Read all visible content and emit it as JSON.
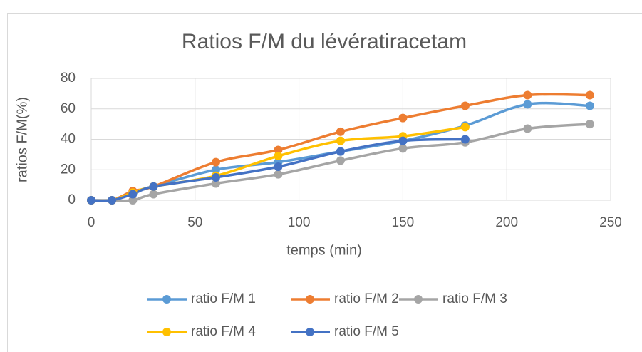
{
  "chart_data": {
    "type": "line",
    "title": "Ratios F/M du lévératiracetam",
    "x_label": "temps (min)",
    "y_label": "ratios F/M(%)",
    "x": [
      0,
      10,
      20,
      30,
      60,
      90,
      120,
      150,
      180,
      210,
      240
    ],
    "xlim": [
      0,
      250
    ],
    "xticks": [
      0,
      50,
      100,
      150,
      200,
      250
    ],
    "ylim": [
      0,
      80
    ],
    "yticks": [
      0,
      20,
      40,
      60,
      80
    ],
    "grid": true,
    "smooth": true,
    "legend": "bottom",
    "series": [
      {
        "name": "ratio F/M 1",
        "color": "#5B9BD5",
        "values": [
          0,
          0,
          5,
          9,
          20,
          25,
          32,
          39,
          49,
          63,
          62
        ]
      },
      {
        "name": "ratio F/M 2",
        "color": "#ED7D31",
        "values": [
          0,
          0,
          6,
          9,
          25,
          33,
          45,
          54,
          62,
          69,
          69
        ]
      },
      {
        "name": "ratio F/M 3",
        "color": "#A5A5A5",
        "values": [
          0,
          0,
          0,
          4,
          11,
          17,
          26,
          34,
          38,
          47,
          50
        ]
      },
      {
        "name": "ratio F/M 4",
        "color": "#FFC000",
        "values": [
          0,
          0,
          5,
          9,
          16,
          29,
          39,
          42,
          48,
          null,
          null
        ]
      },
      {
        "name": "ratio F/M 5",
        "color": "#4472C4",
        "values": [
          0,
          0,
          4,
          9,
          15,
          22,
          32,
          39,
          40,
          null,
          null
        ]
      }
    ]
  }
}
